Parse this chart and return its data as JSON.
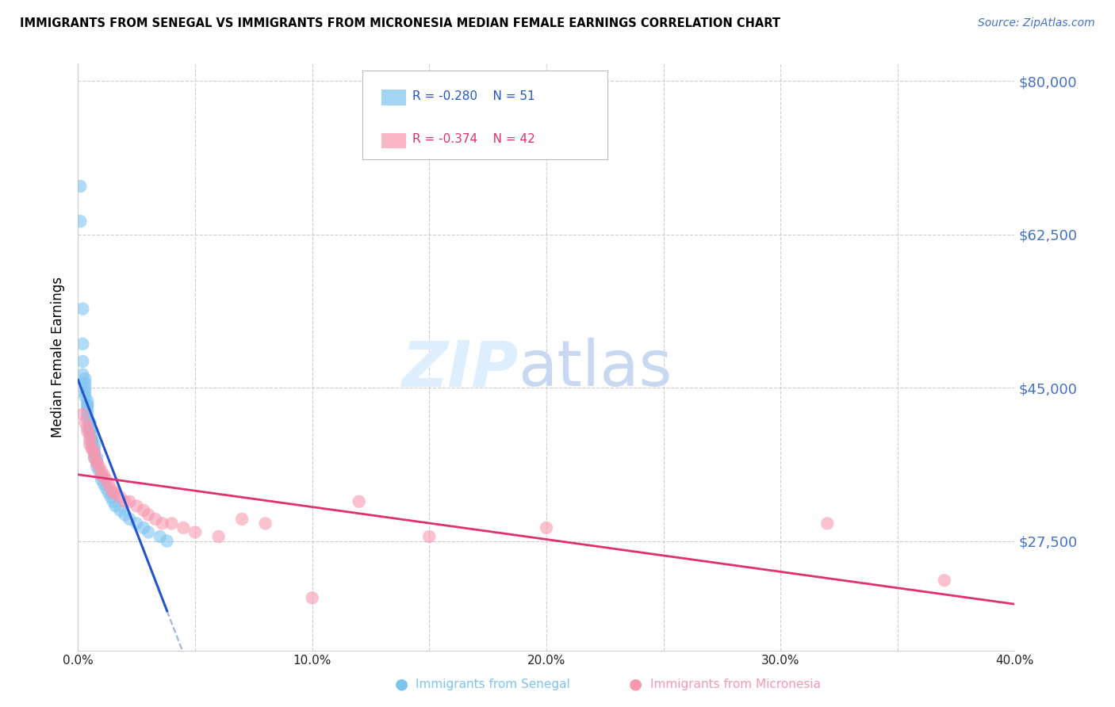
{
  "title": "IMMIGRANTS FROM SENEGAL VS IMMIGRANTS FROM MICRONESIA MEDIAN FEMALE EARNINGS CORRELATION CHART",
  "source": "Source: ZipAtlas.com",
  "ylabel": "Median Female Earnings",
  "xlim": [
    0.0,
    0.4
  ],
  "ylim": [
    15000,
    82000
  ],
  "yticks": [
    27500,
    45000,
    62500,
    80000
  ],
  "ytick_labels": [
    "$27,500",
    "$45,000",
    "$62,500",
    "$80,000"
  ],
  "xtick_labels": [
    "0.0%",
    "",
    "10.0%",
    "",
    "20.0%",
    "",
    "30.0%",
    "",
    "40.0%"
  ],
  "xticks": [
    0.0,
    0.05,
    0.1,
    0.15,
    0.2,
    0.25,
    0.3,
    0.35,
    0.4
  ],
  "senegal_color": "#7dc4f0",
  "micronesia_color": "#f898b0",
  "senegal_trend_color": "#2255cc",
  "micronesia_trend_color": "#e03070",
  "senegal_label": "Immigrants from Senegal",
  "micronesia_label": "Immigrants from Micronesia",
  "legend_r_senegal": "R = -0.280",
  "legend_n_senegal": "N = 51",
  "legend_r_micronesia": "R = -0.374",
  "legend_n_micronesia": "N = 42",
  "watermark_zip": "ZIP",
  "watermark_atlas": "atlas",
  "background_color": "#ffffff",
  "grid_color": "#cccccc",
  "senegal_x": [
    0.001,
    0.001,
    0.002,
    0.002,
    0.002,
    0.002,
    0.003,
    0.003,
    0.003,
    0.003,
    0.003,
    0.004,
    0.004,
    0.004,
    0.004,
    0.004,
    0.004,
    0.005,
    0.005,
    0.005,
    0.005,
    0.005,
    0.005,
    0.006,
    0.006,
    0.006,
    0.006,
    0.007,
    0.007,
    0.007,
    0.007,
    0.008,
    0.008,
    0.008,
    0.009,
    0.01,
    0.01,
    0.011,
    0.012,
    0.013,
    0.014,
    0.015,
    0.016,
    0.018,
    0.02,
    0.022,
    0.025,
    0.028,
    0.03,
    0.035,
    0.038
  ],
  "senegal_y": [
    68000,
    64000,
    54000,
    50000,
    48000,
    46500,
    46000,
    45500,
    45000,
    44500,
    44000,
    43500,
    43000,
    43000,
    42500,
    42000,
    41500,
    41000,
    41000,
    40500,
    40500,
    40000,
    40000,
    39500,
    39000,
    39000,
    38500,
    38500,
    38000,
    37500,
    37000,
    37000,
    36500,
    36000,
    35500,
    35000,
    34500,
    34000,
    33500,
    33000,
    32500,
    32000,
    31500,
    31000,
    30500,
    30000,
    29500,
    29000,
    28500,
    28000,
    27500
  ],
  "micronesia_x": [
    0.002,
    0.003,
    0.004,
    0.004,
    0.005,
    0.005,
    0.005,
    0.006,
    0.006,
    0.007,
    0.007,
    0.008,
    0.008,
    0.009,
    0.01,
    0.01,
    0.011,
    0.012,
    0.013,
    0.014,
    0.015,
    0.016,
    0.018,
    0.02,
    0.022,
    0.025,
    0.028,
    0.03,
    0.033,
    0.036,
    0.04,
    0.045,
    0.05,
    0.06,
    0.07,
    0.08,
    0.1,
    0.12,
    0.15,
    0.2,
    0.32,
    0.37
  ],
  "micronesia_y": [
    42000,
    41000,
    40500,
    40000,
    39500,
    39000,
    38500,
    38000,
    38000,
    37500,
    37000,
    36500,
    36500,
    36000,
    35500,
    35000,
    35000,
    34500,
    34000,
    33500,
    33000,
    33000,
    32500,
    32000,
    32000,
    31500,
    31000,
    30500,
    30000,
    29500,
    29500,
    29000,
    28500,
    28000,
    30000,
    29500,
    21000,
    32000,
    28000,
    29000,
    29500,
    23000
  ],
  "senegal_trend_x0": 0.0,
  "senegal_trend_x1": 0.038,
  "micronesia_trend_x0": 0.0,
  "micronesia_trend_x1": 0.4
}
